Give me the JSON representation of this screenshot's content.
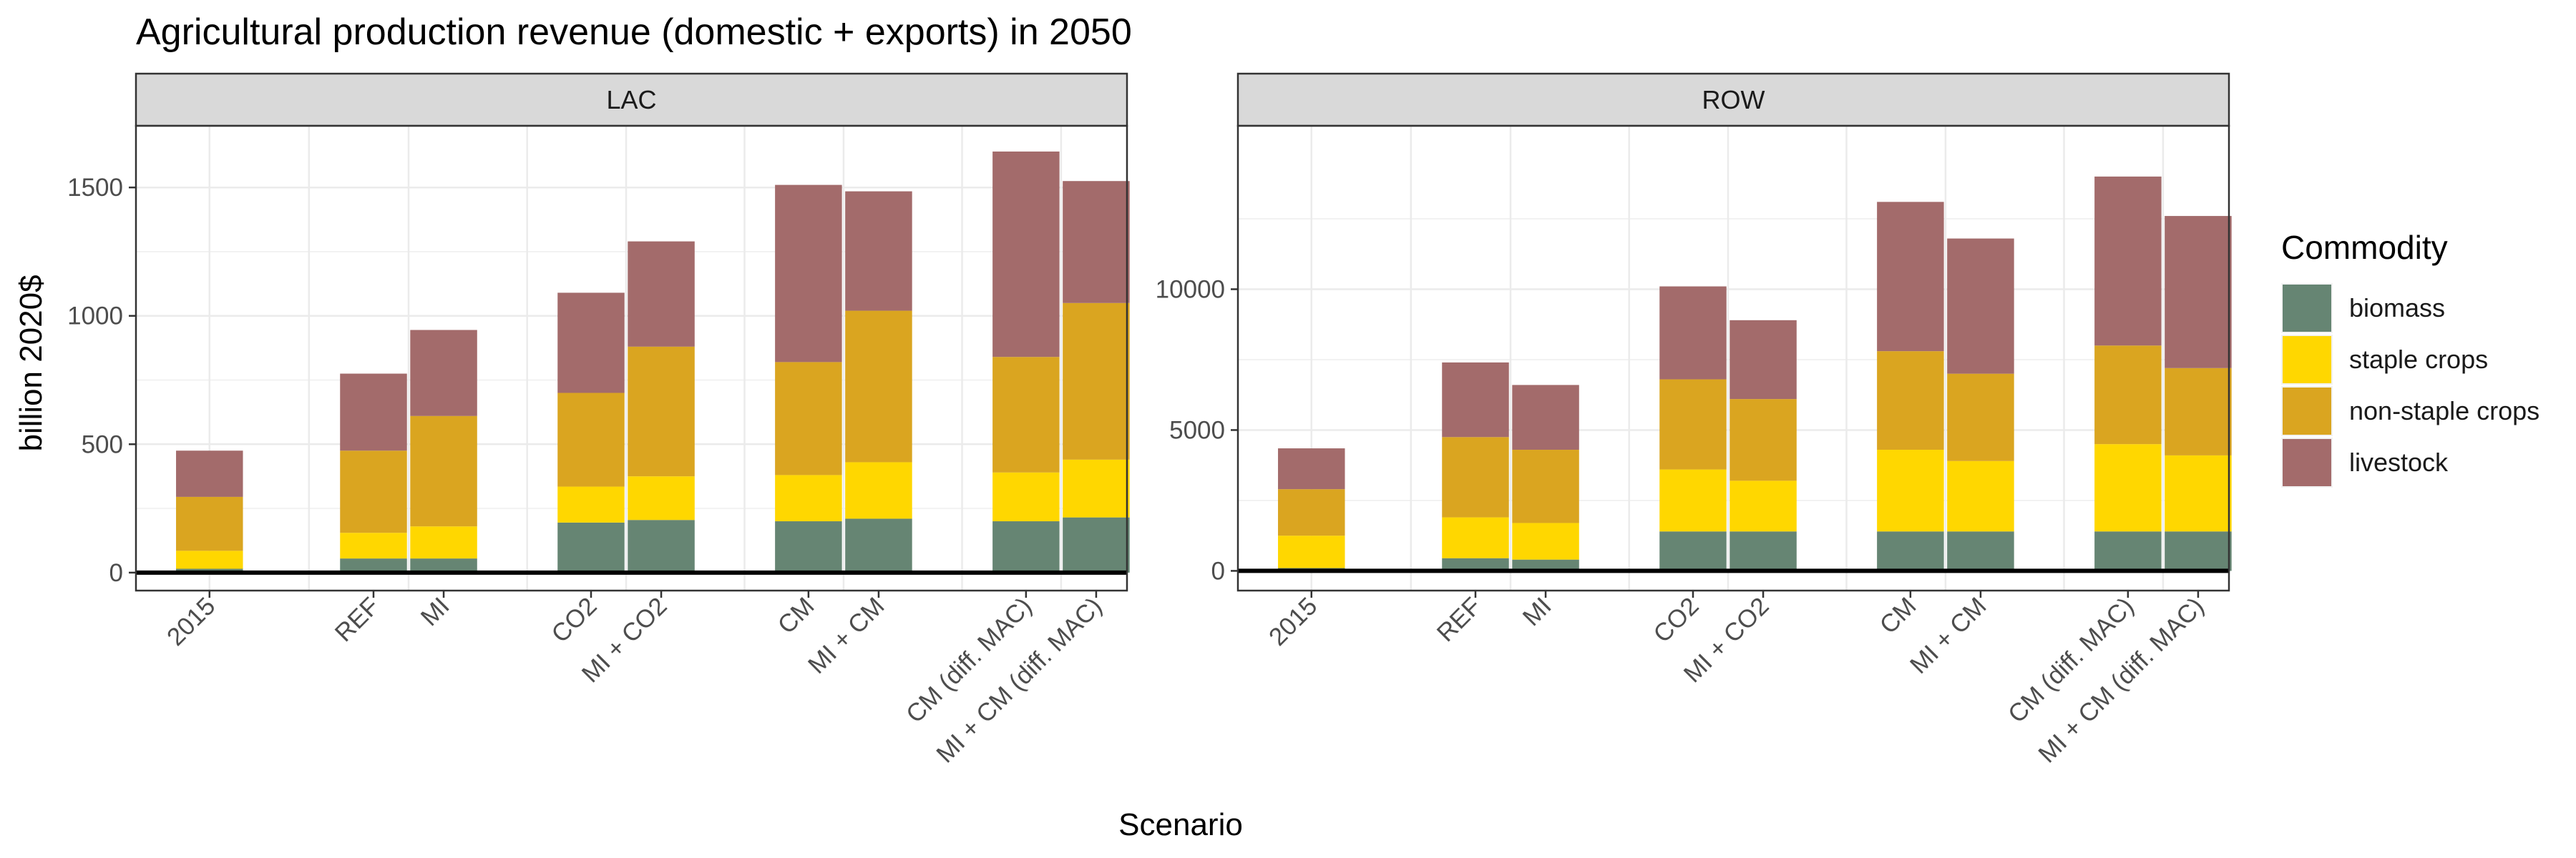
{
  "chart_data": {
    "type": "bar",
    "stacked": true,
    "title": "Agricultural production revenue (domestic + exports) in 2050",
    "xlabel": "Scenario",
    "ylabel": "billion 2020$",
    "legend": {
      "title": "Commodity",
      "position": "right",
      "items": [
        {
          "name": "biomass",
          "color": "#668573"
        },
        {
          "name": "staple crops",
          "color": "#FFD700"
        },
        {
          "name": "non-staple crops",
          "color": "#DAA520"
        },
        {
          "name": "livestock",
          "color": "#A36B6B"
        }
      ]
    },
    "grid": true,
    "categories": [
      "2015",
      "REF",
      "MI",
      "CO2",
      "MI + CO2",
      "CM",
      "MI + CM",
      "CM (diff. MAC)",
      "MI + CM (diff. MAC)"
    ],
    "panels": [
      {
        "name": "LAC",
        "ylim": [
          -70,
          1740
        ],
        "yticks": [
          0,
          500,
          1000,
          1500
        ],
        "ytick_labels": [
          "0",
          "500",
          "1000",
          "1500"
        ],
        "series": [
          {
            "name": "biomass",
            "values": [
              15,
              55,
              55,
              195,
              205,
              200,
              210,
              200,
              215
            ]
          },
          {
            "name": "staple crops",
            "values": [
              70,
              100,
              125,
              140,
              170,
              180,
              220,
              190,
              225
            ]
          },
          {
            "name": "non-staple crops",
            "values": [
              210,
              320,
              430,
              365,
              505,
              440,
              590,
              450,
              610
            ]
          },
          {
            "name": "livestock",
            "values": [
              180,
              300,
              335,
              390,
              410,
              690,
              465,
              800,
              475
            ]
          }
        ]
      },
      {
        "name": "ROW",
        "ylim": [
          -700,
          15800
        ],
        "yticks": [
          0,
          5000,
          10000
        ],
        "ytick_labels": [
          "0",
          "5000",
          "10000"
        ],
        "series": [
          {
            "name": "biomass",
            "values": [
              100,
              450,
              400,
              1400,
              1400,
              1400,
              1400,
              1400,
              1400
            ]
          },
          {
            "name": "staple crops",
            "values": [
              1150,
              1450,
              1300,
              2200,
              1800,
              2900,
              2500,
              3100,
              2700
            ]
          },
          {
            "name": "non-staple crops",
            "values": [
              1650,
              2850,
              2600,
              3200,
              2900,
              3500,
              3100,
              3500,
              3100
            ]
          },
          {
            "name": "livestock",
            "values": [
              1450,
              2650,
              2300,
              3300,
              2800,
              5300,
              4800,
              6000,
              5400
            ]
          }
        ]
      }
    ]
  }
}
